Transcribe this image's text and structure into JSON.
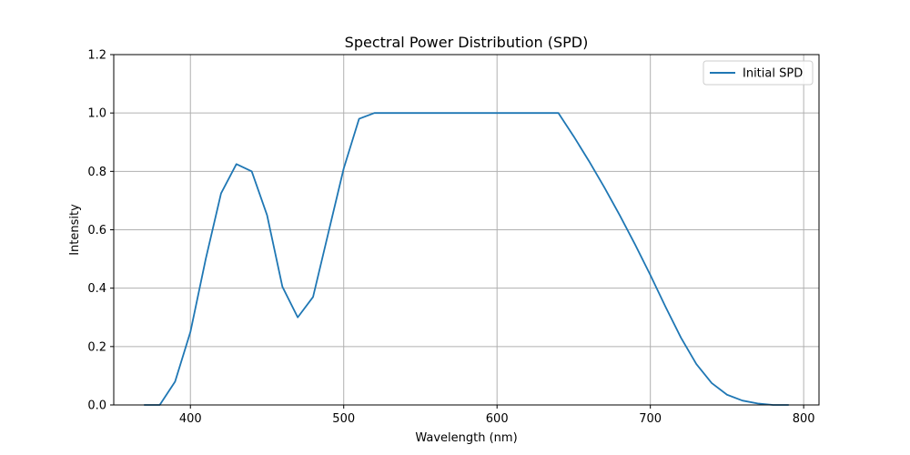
{
  "chart_data": {
    "type": "line",
    "title": "Spectral Power Distribution (SPD)",
    "xlabel": "Wavelength (nm)",
    "ylabel": "Intensity",
    "xlim": [
      350,
      810
    ],
    "ylim": [
      0,
      1.2
    ],
    "xticks": [
      400,
      500,
      600,
      700,
      800
    ],
    "xtick_labels": [
      "400",
      "500",
      "600",
      "700",
      "800"
    ],
    "yticks": [
      0.0,
      0.2,
      0.4,
      0.6,
      0.8,
      1.0,
      1.2
    ],
    "ytick_labels": [
      "0.0",
      "0.2",
      "0.4",
      "0.6",
      "0.8",
      "1.0",
      "1.2"
    ],
    "grid": true,
    "legend_position": "top-right",
    "series": [
      {
        "name": "Initial SPD",
        "color": "#1f77b4",
        "x": [
          370,
          380,
          390,
          400,
          410,
          420,
          430,
          440,
          450,
          460,
          470,
          480,
          490,
          500,
          510,
          520,
          530,
          540,
          550,
          560,
          570,
          580,
          590,
          600,
          610,
          620,
          630,
          640,
          650,
          660,
          670,
          680,
          690,
          700,
          710,
          720,
          730,
          740,
          750,
          760,
          770,
          780,
          790
        ],
        "y": [
          0.0,
          0.0,
          0.08,
          0.25,
          0.5,
          0.725,
          0.825,
          0.8,
          0.65,
          0.405,
          0.3,
          0.37,
          0.59,
          0.81,
          0.98,
          1.0,
          1.0,
          1.0,
          1.0,
          1.0,
          1.0,
          1.0,
          1.0,
          1.0,
          1.0,
          1.0,
          1.0,
          1.0,
          0.92,
          0.835,
          0.745,
          0.65,
          0.55,
          0.445,
          0.335,
          0.23,
          0.14,
          0.075,
          0.035,
          0.015,
          0.005,
          0.0,
          0.0
        ]
      }
    ]
  }
}
